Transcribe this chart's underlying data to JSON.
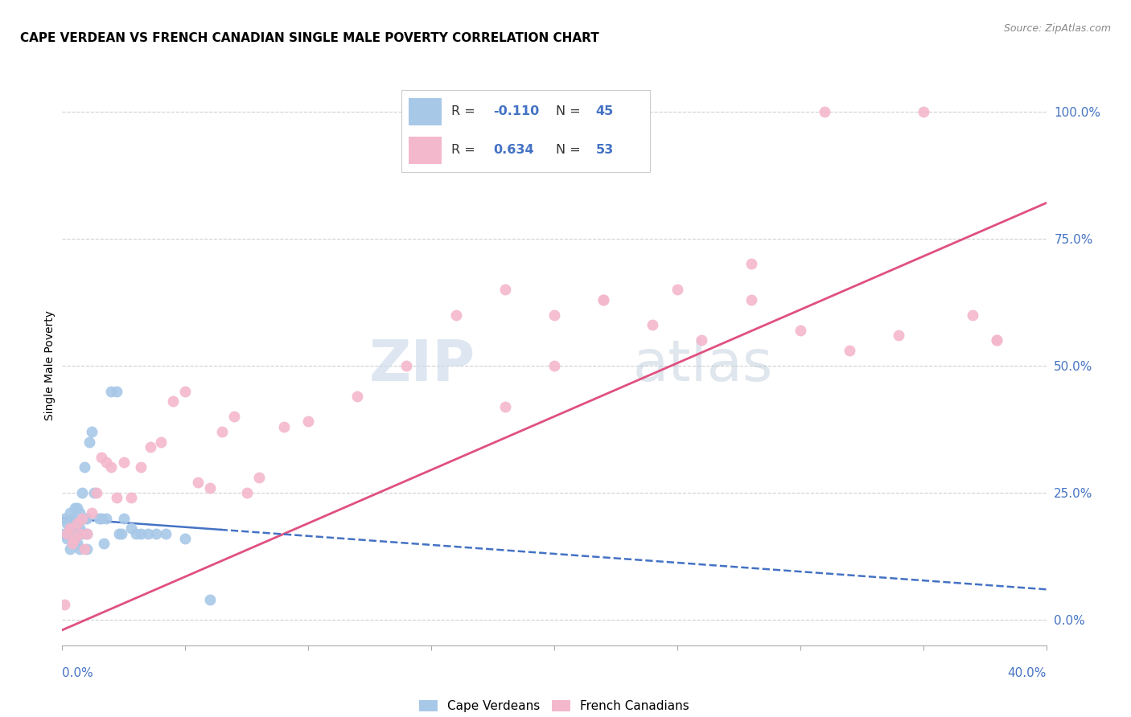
{
  "title": "CAPE VERDEAN VS FRENCH CANADIAN SINGLE MALE POVERTY CORRELATION CHART",
  "source": "Source: ZipAtlas.com",
  "ylabel": "Single Male Poverty",
  "legend_cv": "Cape Verdeans",
  "legend_fc": "French Canadians",
  "R_cv": "-0.110",
  "N_cv": "45",
  "R_fc": "0.634",
  "N_fc": "53",
  "cv_color": "#a8c8e8",
  "fc_color": "#f4b8cc",
  "cv_line_color": "#4472c4",
  "fc_line_color": "#e05080",
  "watermark_zip": "ZIP",
  "watermark_atlas": "atlas",
  "cv_points_x": [
    0.001,
    0.001,
    0.002,
    0.002,
    0.003,
    0.003,
    0.003,
    0.004,
    0.004,
    0.005,
    0.005,
    0.005,
    0.006,
    0.006,
    0.006,
    0.007,
    0.007,
    0.007,
    0.008,
    0.008,
    0.009,
    0.009,
    0.01,
    0.01,
    0.01,
    0.011,
    0.012,
    0.013,
    0.015,
    0.016,
    0.017,
    0.018,
    0.02,
    0.022,
    0.023,
    0.024,
    0.025,
    0.028,
    0.03,
    0.032,
    0.035,
    0.038,
    0.042,
    0.05,
    0.06
  ],
  "cv_points_y": [
    0.2,
    0.17,
    0.19,
    0.16,
    0.21,
    0.18,
    0.14,
    0.2,
    0.17,
    0.22,
    0.19,
    0.16,
    0.22,
    0.19,
    0.15,
    0.21,
    0.18,
    0.14,
    0.25,
    0.17,
    0.3,
    0.2,
    0.2,
    0.17,
    0.14,
    0.35,
    0.37,
    0.25,
    0.2,
    0.2,
    0.15,
    0.2,
    0.45,
    0.45,
    0.17,
    0.17,
    0.2,
    0.18,
    0.17,
    0.17,
    0.17,
    0.17,
    0.17,
    0.16,
    0.04
  ],
  "fc_points_x": [
    0.001,
    0.002,
    0.003,
    0.004,
    0.005,
    0.006,
    0.007,
    0.008,
    0.009,
    0.01,
    0.012,
    0.014,
    0.016,
    0.018,
    0.02,
    0.022,
    0.025,
    0.028,
    0.032,
    0.036,
    0.04,
    0.045,
    0.05,
    0.055,
    0.06,
    0.065,
    0.07,
    0.075,
    0.08,
    0.09,
    0.1,
    0.12,
    0.14,
    0.16,
    0.18,
    0.2,
    0.22,
    0.25,
    0.28,
    0.31,
    0.34,
    0.37,
    0.38,
    0.18,
    0.2,
    0.22,
    0.24,
    0.26,
    0.28,
    0.3,
    0.32,
    0.35,
    0.38
  ],
  "fc_points_y": [
    0.03,
    0.17,
    0.18,
    0.15,
    0.16,
    0.19,
    0.17,
    0.2,
    0.14,
    0.17,
    0.21,
    0.25,
    0.32,
    0.31,
    0.3,
    0.24,
    0.31,
    0.24,
    0.3,
    0.34,
    0.35,
    0.43,
    0.45,
    0.27,
    0.26,
    0.37,
    0.4,
    0.25,
    0.28,
    0.38,
    0.39,
    0.44,
    0.5,
    0.6,
    0.42,
    0.5,
    0.63,
    0.65,
    0.7,
    1.0,
    0.56,
    0.6,
    0.55,
    0.65,
    0.6,
    0.63,
    0.58,
    0.55,
    0.63,
    0.57,
    0.53,
    1.0,
    0.55
  ],
  "fc_line_slope": 2.1,
  "fc_line_intercept": -0.02,
  "cv_line_slope": -0.35,
  "cv_line_intercept": 0.2
}
